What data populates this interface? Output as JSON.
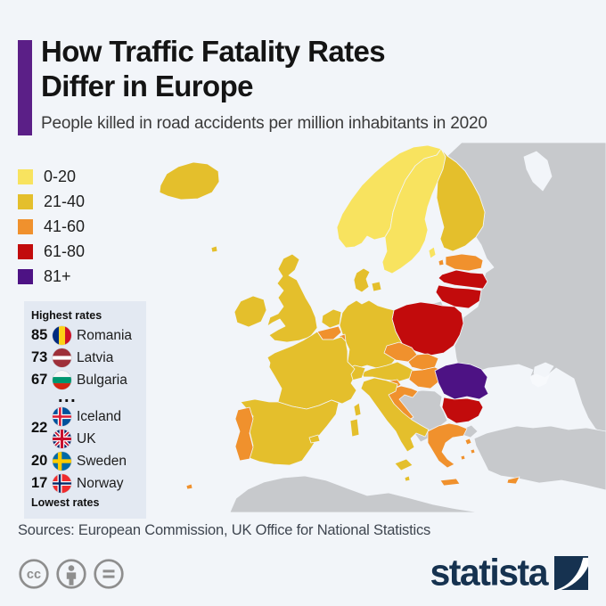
{
  "page": {
    "background": "#F2F5F9"
  },
  "header": {
    "accent_color": "#5B1F87",
    "title_line1": "How Traffic Fatality Rates",
    "title_line2": "Differ in Europe",
    "subtitle": "People killed in road accidents per million inhabitants in 2020"
  },
  "legend": {
    "items": [
      {
        "label": "0-20",
        "color": "#F8E35F"
      },
      {
        "label": "21-40",
        "color": "#E4BF2C"
      },
      {
        "label": "41-60",
        "color": "#F0912D"
      },
      {
        "label": "61-80",
        "color": "#C20B0C"
      },
      {
        "label": "81+",
        "color": "#4D1284"
      }
    ]
  },
  "rates_box": {
    "background": "#E3E9F2",
    "rows": [
      {
        "type": "header",
        "text": "Highest rates"
      },
      {
        "type": "row",
        "value": "85",
        "flag": "romania",
        "country": "Romania"
      },
      {
        "type": "row",
        "value": "73",
        "flag": "latvia",
        "country": "Latvia"
      },
      {
        "type": "row",
        "value": "67",
        "flag": "bulgaria",
        "country": "Bulgaria"
      },
      {
        "type": "ellipsis",
        "text": "..."
      },
      {
        "type": "double",
        "value": "22",
        "entries": [
          {
            "flag": "iceland",
            "country": "Iceland"
          },
          {
            "flag": "uk",
            "country": "UK"
          }
        ]
      },
      {
        "type": "row",
        "value": "20",
        "flag": "sweden",
        "country": "Sweden"
      },
      {
        "type": "row",
        "value": "17",
        "flag": "norway",
        "country": "Norway"
      },
      {
        "type": "header",
        "text": "Lowest rates"
      }
    ]
  },
  "map": {
    "sea_color": "#F2F5F9",
    "non_eu_color": "#C7C9CC",
    "disputed_color": "#F7F9FC",
    "border_color": "#F2F5F9",
    "category_colors": {
      "0-20": "#F8E35F",
      "21-40": "#E4BF2C",
      "41-60": "#F0912D",
      "61-80": "#C20B0C",
      "81+": "#4D1284"
    },
    "country_categories": {
      "iceland": "21-40",
      "faroe": "21-40",
      "norway": "0-20",
      "sweden": "0-20",
      "gotland": "0-20",
      "finland": "21-40",
      "denmark": "21-40",
      "denmark-islands": "21-40",
      "estonia": "41-60",
      "estonia-islands": "41-60",
      "latvia": "61-80",
      "lithuania": "61-80",
      "poland": "61-80",
      "germany": "21-40",
      "netherlands": "21-40",
      "belgium": "41-60",
      "luxembourg": "41-60",
      "czechia": "41-60",
      "slovakia": "41-60",
      "austria": "21-40",
      "switzerland": "21-40",
      "hungary": "41-60",
      "slovenia": "41-60",
      "croatia": "41-60",
      "uk": "21-40",
      "ireland": "21-40",
      "france": "21-40",
      "corsica": "21-40",
      "spain": "21-40",
      "balearics": "21-40",
      "portugal": "41-60",
      "madeira": "41-60",
      "italy": "21-40",
      "sicily": "21-40",
      "sardinia": "21-40",
      "malta": "21-40",
      "romania": "81+",
      "bulgaria": "61-80",
      "greece": "41-60",
      "crete": "41-60",
      "aegean-1": "41-60",
      "aegean-2": "41-60",
      "aegean-3": "41-60",
      "cyprus": "41-60"
    }
  },
  "footer": {
    "sources": "Sources: European Commission, UK Office for National Statistics",
    "brand": "statista",
    "brand_color": "#163250",
    "cc_gray": "#8E8E8E"
  },
  "chart_data": {
    "type": "choropleth",
    "title": "How Traffic Fatality Rates Differ in Europe",
    "subtitle": "People killed in road accidents per million inhabitants in 2020",
    "unit": "road deaths per million inhabitants, 2020",
    "bins": [
      {
        "label": "0-20",
        "color": "#F8E35F"
      },
      {
        "label": "21-40",
        "color": "#E4BF2C"
      },
      {
        "label": "41-60",
        "color": "#F0912D"
      },
      {
        "label": "61-80",
        "color": "#C20B0C"
      },
      {
        "label": "81+",
        "color": "#4D1284"
      }
    ],
    "highest_rates": [
      {
        "country": "Romania",
        "value": 85
      },
      {
        "country": "Latvia",
        "value": 73
      },
      {
        "country": "Bulgaria",
        "value": 67
      }
    ],
    "lowest_rates": [
      {
        "country": "Iceland",
        "value": 22
      },
      {
        "country": "UK",
        "value": 22
      },
      {
        "country": "Sweden",
        "value": 20
      },
      {
        "country": "Norway",
        "value": 17
      }
    ],
    "country_bins": {
      "Norway": "0-20",
      "Sweden": "0-20",
      "Iceland": "21-40",
      "UK": "21-40",
      "Ireland": "21-40",
      "France": "21-40",
      "Spain": "21-40",
      "Germany": "21-40",
      "Netherlands": "21-40",
      "Denmark": "21-40",
      "Finland": "21-40",
      "Italy": "21-40",
      "Switzerland": "21-40",
      "Austria": "21-40",
      "Malta": "21-40",
      "Portugal": "41-60",
      "Belgium": "41-60",
      "Luxembourg": "41-60",
      "Estonia": "41-60",
      "Czechia": "41-60",
      "Slovakia": "41-60",
      "Hungary": "41-60",
      "Slovenia": "41-60",
      "Croatia": "41-60",
      "Greece": "41-60",
      "Cyprus": "41-60",
      "Poland": "61-80",
      "Latvia": "61-80",
      "Lithuania": "61-80",
      "Bulgaria": "61-80",
      "Romania": "81+"
    },
    "non_eu_shown_gray": [
      "Russia",
      "Belarus",
      "Ukraine",
      "Moldova",
      "Serbia",
      "Bosnia and Herzegovina",
      "Albania",
      "North Macedonia",
      "Montenegro",
      "Kosovo",
      "Turkey",
      "North Africa"
    ]
  }
}
